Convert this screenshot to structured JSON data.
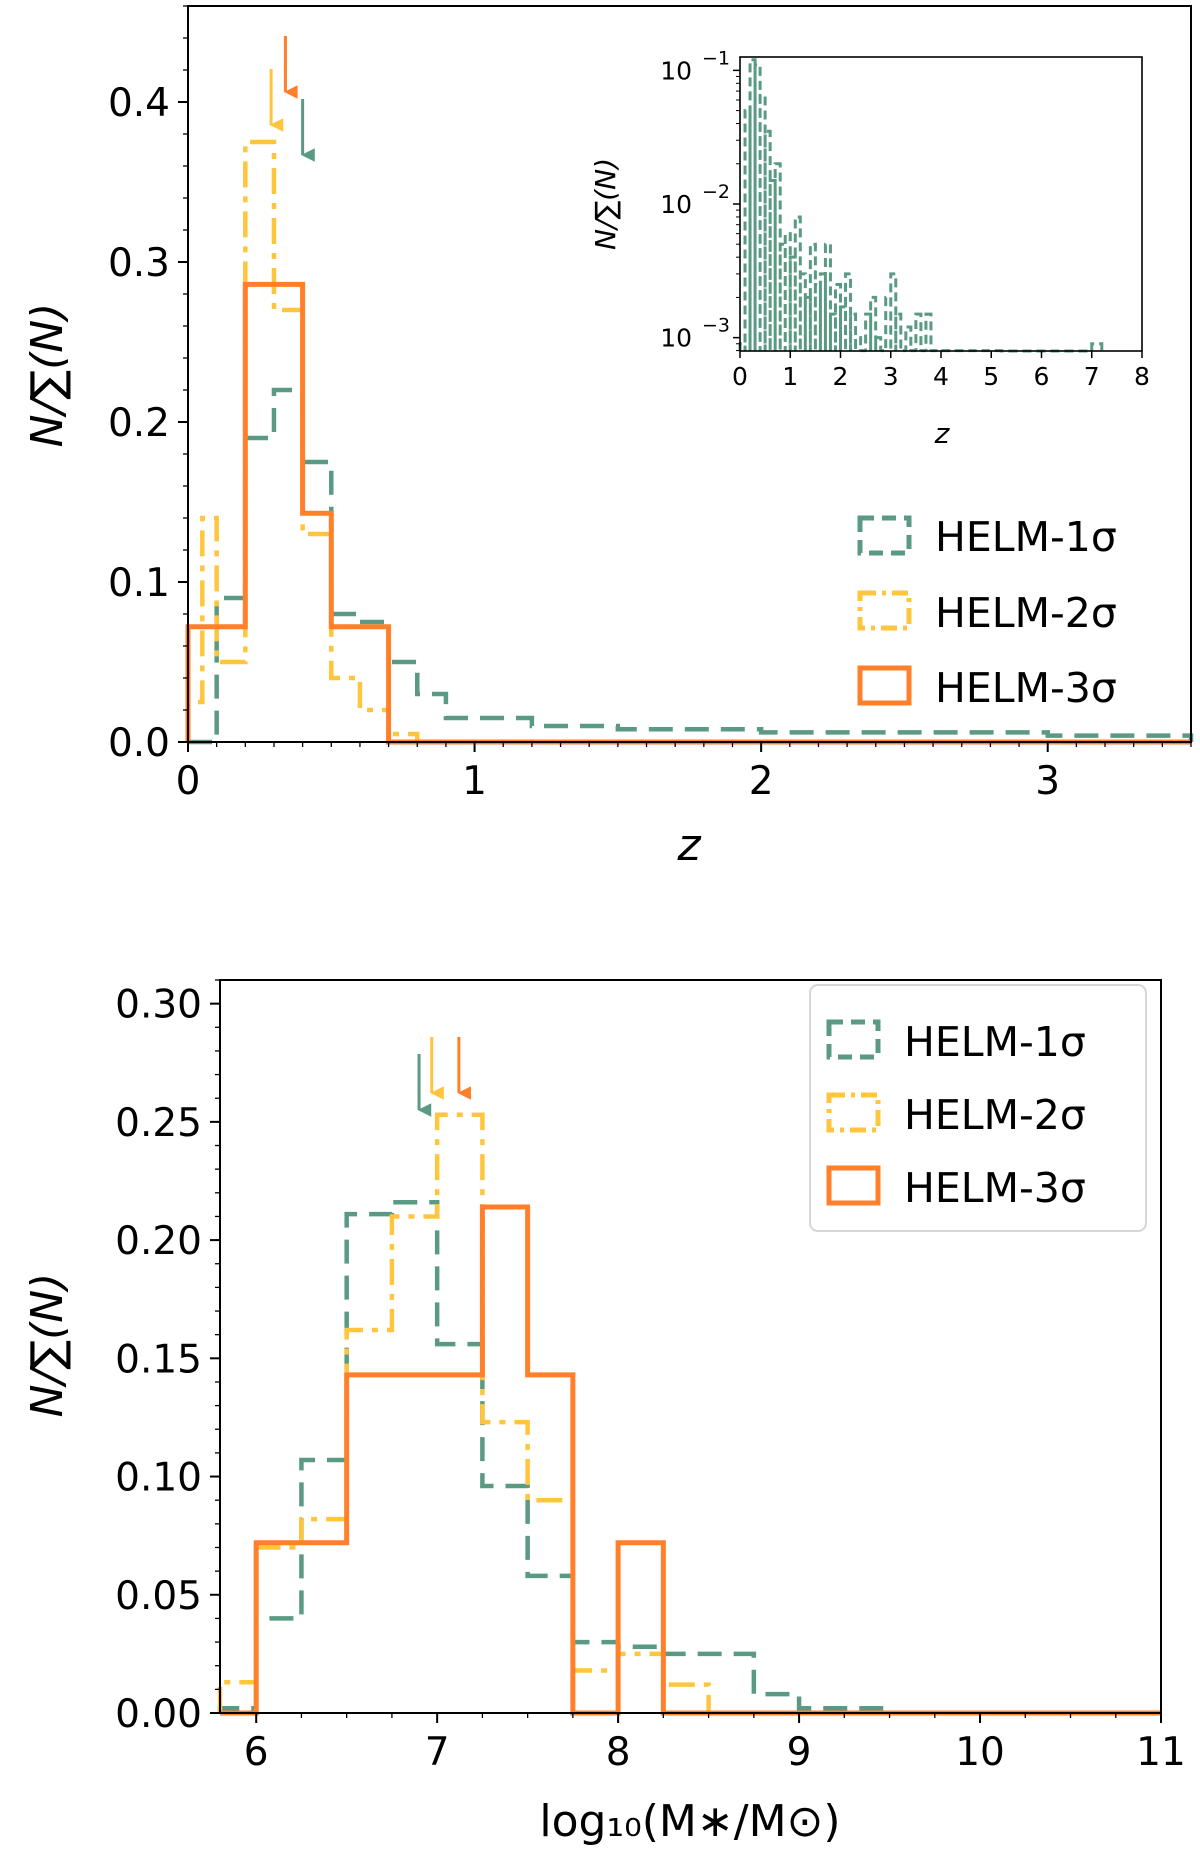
{
  "chart_data": [
    {
      "type": "histogram",
      "name": "redshift-distribution",
      "xlabel": "z",
      "ylabel": "N/∑(N)",
      "xlim": [
        0,
        3.5
      ],
      "ylim": [
        0,
        0.46
      ],
      "xticks": [
        0,
        1,
        2,
        3
      ],
      "yticks": [
        0.0,
        0.1,
        0.2,
        0.3,
        0.4
      ],
      "legend_position": "center-right",
      "series": [
        {
          "name": "HELM-1σ",
          "style": "dashed",
          "color": "#5a9a82",
          "edges": [
            0.0,
            0.1,
            0.2,
            0.3,
            0.4,
            0.5,
            0.6,
            0.7,
            0.8,
            0.9,
            1.0,
            1.2,
            1.5,
            2.0,
            2.5,
            3.0,
            3.5
          ],
          "values": [
            0.0,
            0.09,
            0.19,
            0.22,
            0.175,
            0.08,
            0.075,
            0.05,
            0.03,
            0.015,
            0.015,
            0.01,
            0.008,
            0.006,
            0.006,
            0.004
          ]
        },
        {
          "name": "HELM-2σ",
          "style": "dashdot",
          "color": "#ffc53d",
          "edges": [
            0.0,
            0.05,
            0.1,
            0.2,
            0.3,
            0.4,
            0.5,
            0.6,
            0.7,
            0.8,
            3.5
          ],
          "values": [
            0.025,
            0.14,
            0.05,
            0.375,
            0.27,
            0.13,
            0.04,
            0.02,
            0.005,
            0.0
          ]
        },
        {
          "name": "HELM-3σ",
          "style": "solid",
          "color": "#ff7f2a",
          "edges": [
            0.0,
            0.2,
            0.4,
            0.5,
            0.7,
            3.5
          ],
          "values": [
            0.072,
            0.286,
            0.143,
            0.072,
            0.0
          ]
        }
      ],
      "medians": [
        {
          "series": "HELM-1σ",
          "x": 0.4
        },
        {
          "series": "HELM-2σ",
          "x": 0.29
        },
        {
          "series": "HELM-3σ",
          "x": 0.34
        }
      ],
      "inset": {
        "xlabel": "z",
        "ylabel": "N/∑(N)",
        "yscale": "log",
        "xlim": [
          0,
          8
        ],
        "ylim_log10": [
          -3.1,
          -0.9
        ],
        "xticks": [
          0,
          1,
          2,
          3,
          4,
          5,
          6,
          7,
          8
        ],
        "ytick_labels": [
          "10",
          "10",
          "10"
        ],
        "ytick_exponents": [
          "−1",
          "−2",
          "−3"
        ],
        "series": "HELM-1σ",
        "edges": [
          0.0,
          0.1,
          0.2,
          0.3,
          0.4,
          0.5,
          0.6,
          0.7,
          0.8,
          0.9,
          1.0,
          1.1,
          1.2,
          1.3,
          1.4,
          1.5,
          1.6,
          1.7,
          1.8,
          1.9,
          2.0,
          2.1,
          2.2,
          2.3,
          2.4,
          2.5,
          2.6,
          2.7,
          2.8,
          2.9,
          3.0,
          3.1,
          3.2,
          3.3,
          3.4,
          3.5,
          3.6,
          3.7,
          3.8,
          3.9,
          4.0,
          4.3,
          4.6,
          4.9,
          5.2,
          7.0,
          7.2
        ],
        "values": [
          0.0009,
          0.05,
          0.12,
          0.11,
          0.065,
          0.035,
          0.015,
          0.02,
          0.005,
          0.006,
          0.004,
          0.008,
          0.003,
          0.002,
          0.005,
          0.0025,
          0.003,
          0.005,
          0.0015,
          0.0025,
          0.0017,
          0.003,
          0.0015,
          0.001,
          0.0008,
          0.0015,
          0.002,
          0.001,
          0.0008,
          0.002,
          0.003,
          0.0015,
          0.0008,
          0.0012,
          0.0008,
          0.0015,
          0.0008,
          0.0015,
          0.0008,
          0.0008,
          0.0008,
          0.0008,
          0.0008,
          0.0008,
          0.0006,
          0.0009
        ]
      }
    },
    {
      "type": "histogram",
      "name": "stellar-mass-distribution",
      "xlabel": "log₁₀(M∗/M⊙)",
      "ylabel": "N/∑(N)",
      "xlim": [
        5.8,
        11
      ],
      "ylim": [
        0,
        0.31
      ],
      "xticks": [
        6,
        7,
        8,
        9,
        10,
        11
      ],
      "yticks": [
        "0.00",
        "0.05",
        "0.10",
        "0.15",
        "0.20",
        "0.25",
        "0.30"
      ],
      "legend_position": "upper-right",
      "series": [
        {
          "name": "HELM-1σ",
          "style": "dashed",
          "color": "#5a9a82",
          "edges": [
            5.8,
            6.0,
            6.25,
            6.5,
            6.75,
            7.0,
            7.25,
            7.5,
            7.75,
            8.0,
            8.25,
            8.5,
            8.75,
            9.0,
            9.5,
            11.0
          ],
          "values": [
            0.002,
            0.04,
            0.107,
            0.211,
            0.216,
            0.156,
            0.096,
            0.058,
            0.03,
            0.028,
            0.025,
            0.025,
            0.008,
            0.002,
            0.0
          ]
        },
        {
          "name": "HELM-2σ",
          "style": "dashdot",
          "color": "#ffc53d",
          "edges": [
            5.8,
            6.0,
            6.25,
            6.5,
            6.75,
            7.0,
            7.25,
            7.5,
            7.75,
            8.0,
            8.25,
            8.5,
            11.0
          ],
          "values": [
            0.013,
            0.07,
            0.082,
            0.162,
            0.21,
            0.253,
            0.123,
            0.09,
            0.018,
            0.025,
            0.012,
            0.0
          ]
        },
        {
          "name": "HELM-3σ",
          "style": "solid",
          "color": "#ff7f2a",
          "edges": [
            5.8,
            6.0,
            6.5,
            7.25,
            7.5,
            7.75,
            8.0,
            8.25,
            11.0
          ],
          "values": [
            0.0,
            0.072,
            0.143,
            0.214,
            0.143,
            0.0,
            0.072,
            0.0
          ]
        }
      ],
      "medians": [
        {
          "series": "HELM-1σ",
          "x": 6.9
        },
        {
          "series": "HELM-2σ",
          "x": 6.97
        },
        {
          "series": "HELM-3σ",
          "x": 7.12
        }
      ]
    }
  ]
}
